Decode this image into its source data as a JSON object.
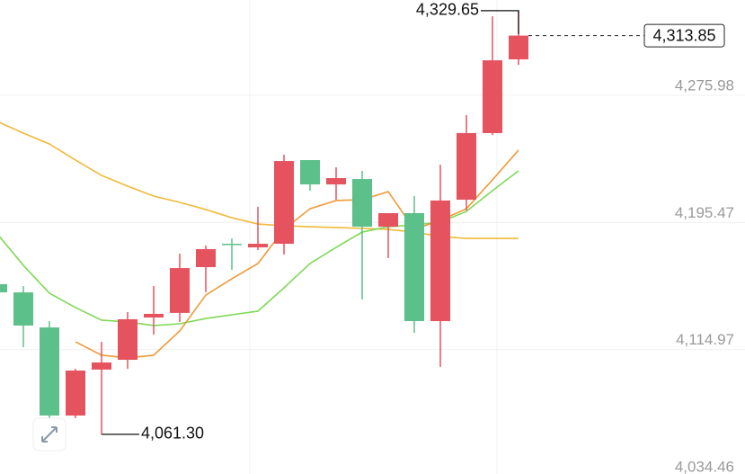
{
  "chart_data": {
    "type": "candlestick",
    "ylim": [
      4034.46,
      4336.4
    ],
    "yticks": [
      {
        "value": 4034.46,
        "label": "4,034.46"
      },
      {
        "value": 4114.97,
        "label": "4,114.97"
      },
      {
        "value": 4195.47,
        "label": "4,195.47"
      },
      {
        "value": 4275.98,
        "label": "4,275.98"
      }
    ],
    "grid": true,
    "up_color": "#e5535f",
    "down_color": "#5cc08a",
    "open": [
      4156.4,
      4151.2,
      4129.0,
      4073.2,
      4102.3,
      4108.5,
      4135.3,
      4138.2,
      4167.2,
      4182.0,
      4179.7,
      4182.0,
      4235.0,
      4219.6,
      4223.0,
      4192.8,
      4201.4,
      4133.0,
      4209.9,
      4252.1,
      4298.8
    ],
    "close": [
      4151.2,
      4130.2,
      4073.2,
      4101.7,
      4106.8,
      4134.2,
      4137.6,
      4166.6,
      4178.6,
      4181.4,
      4182.0,
      4234.4,
      4219.6,
      4223.6,
      4192.8,
      4201.4,
      4133.0,
      4209.4,
      4252.1,
      4298.2,
      4313.85
    ],
    "high": [
      4157.5,
      4155.2,
      4133.0,
      4102.8,
      4119.9,
      4138.7,
      4155.2,
      4175.7,
      4180.9,
      4185.4,
      4205.4,
      4238.4,
      4235.0,
      4230.4,
      4228.2,
      4201.4,
      4212.2,
      4232.1,
      4263.5,
      4326.1,
      4329.65
    ],
    "low": [
      4150.1,
      4116.5,
      4068.7,
      4071.5,
      4061.3,
      4102.8,
      4124.5,
      4132.5,
      4151.3,
      4165.5,
      4178.0,
      4175.2,
      4215.6,
      4209.9,
      4146.7,
      4172.9,
      4125.6,
      4104.0,
      4203.1,
      4250.9,
      4295.3
    ],
    "series": [
      {
        "color": "#f0b93a",
        "values": [
          4259.5,
          4252.1,
          4245.2,
          4235.0,
          4225.3,
          4218.5,
          4212.2,
          4208.2,
          4203.7,
          4198.5,
          4194.5,
          4193.4,
          4192.8,
          4192.3,
          4191.7,
          4191.1,
          4189.4,
          4186.6,
          4185.4,
          4185.4,
          4185.4
        ]
      },
      {
        "color": "#7ed957",
        "values": [
          4188.3,
          4168.3,
          4150.7,
          4141.6,
          4133.6,
          4132.5,
          4130.2,
          4131.3,
          4134.7,
          4137.0,
          4139.3,
          4154.1,
          4169.5,
          4179.7,
          4189.4,
          4192.8,
          4193.9,
          4195.7,
          4202.5,
          4215.6,
          4228.2
        ]
      },
      {
        "color": "#ee9a3a",
        "values": [
          null,
          null,
          null,
          4119.9,
          4111.4,
          4109.7,
          4111.4,
          4126.8,
          4149.5,
          4159.8,
          4169.5,
          4191.1,
          4204.2,
          4209.4,
          4209.9,
          4215.0,
          4191.1,
          4196.8,
          4204.2,
          4222.5,
          4241.3
        ]
      }
    ],
    "annotations": [
      {
        "kind": "high",
        "value": 4329.65,
        "label": "4,329.65"
      },
      {
        "kind": "low",
        "value": 4061.3,
        "label": "4,061.30"
      },
      {
        "kind": "last",
        "value": 4313.85,
        "label": "4,313.85"
      }
    ]
  }
}
